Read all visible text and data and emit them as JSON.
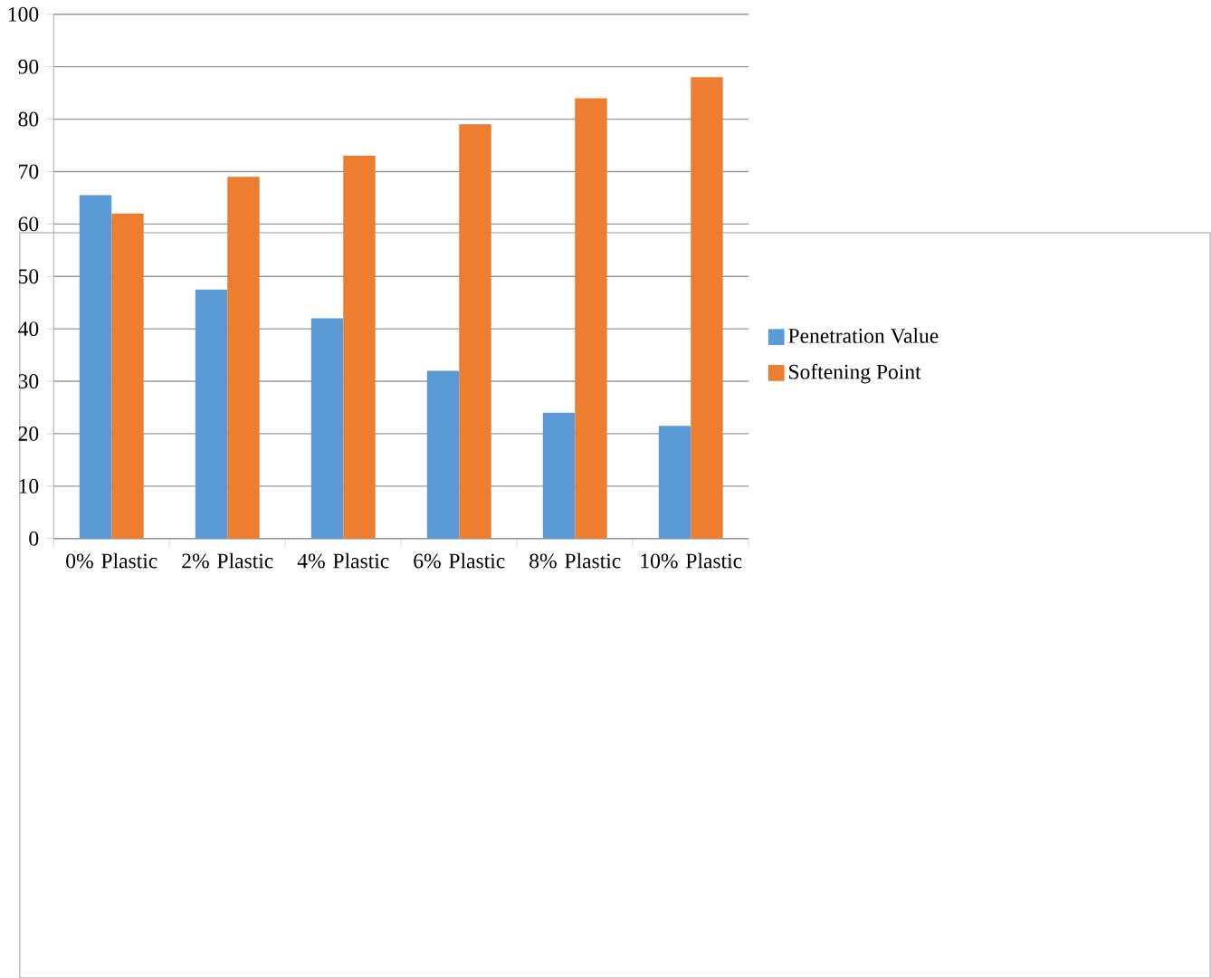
{
  "chart_data": {
    "type": "bar",
    "categories": [
      "0% Plastic",
      "2% Plastic",
      "4% Plastic",
      "6% Plastic",
      "8% Plastic",
      "10% Plastic"
    ],
    "series": [
      {
        "name": "Penetration Value",
        "color": "#5b9bd5",
        "values": [
          65.5,
          47.5,
          42,
          32,
          24,
          21.5
        ]
      },
      {
        "name": "Softening Point",
        "color": "#ed7d31",
        "values": [
          62,
          69,
          73,
          79,
          84,
          88
        ]
      }
    ],
    "ylim": [
      0,
      100
    ],
    "yticks": [
      0,
      10,
      20,
      30,
      40,
      50,
      60,
      70,
      80,
      90,
      100
    ],
    "grid": "y",
    "legend": "right"
  }
}
